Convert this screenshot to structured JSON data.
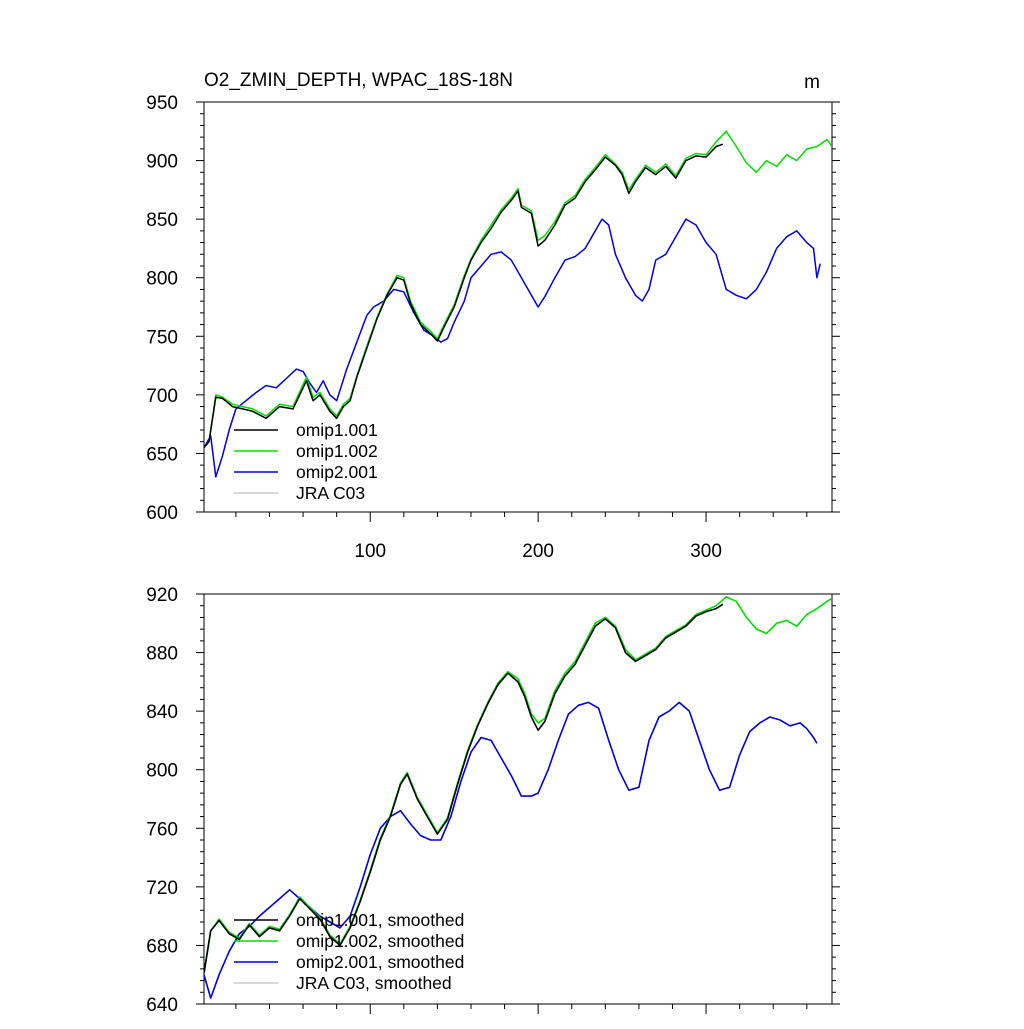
{
  "chart_data": [
    {
      "type": "line",
      "title": "O2_ZMIN_DEPTH, WPAC_18S-18N",
      "units": "m",
      "xlabel": "",
      "ylabel": "",
      "xlim": [
        1,
        375
      ],
      "ylim": [
        600,
        950
      ],
      "yticks": [
        600,
        650,
        700,
        750,
        800,
        850,
        900,
        950
      ],
      "xticks": [
        100,
        200,
        300
      ],
      "xtick_labels": [
        "100",
        "200",
        "300"
      ],
      "legend_location": "bottom-left",
      "series": [
        {
          "name": "omip1.001",
          "color": "#000000",
          "x": [
            1,
            4,
            8,
            12,
            18,
            24,
            30,
            38,
            46,
            54,
            62,
            66,
            70,
            76,
            80,
            84,
            88,
            92,
            98,
            104,
            110,
            116,
            120,
            124,
            130,
            136,
            140,
            144,
            150,
            156,
            160,
            166,
            172,
            178,
            184,
            188,
            190,
            196,
            200,
            204,
            210,
            216,
            222,
            228,
            234,
            240,
            246,
            250,
            254,
            258,
            264,
            270,
            276,
            282,
            288,
            294,
            300,
            306,
            310
          ],
          "y": [
            655,
            660,
            698,
            697,
            690,
            688,
            686,
            680,
            690,
            688,
            712,
            695,
            700,
            686,
            680,
            690,
            695,
            715,
            740,
            765,
            785,
            800,
            798,
            778,
            760,
            752,
            746,
            758,
            775,
            800,
            815,
            830,
            842,
            856,
            866,
            874,
            860,
            855,
            827,
            832,
            845,
            862,
            868,
            882,
            892,
            903,
            896,
            888,
            872,
            882,
            894,
            888,
            895,
            885,
            900,
            904,
            903,
            912,
            914
          ]
        },
        {
          "name": "omip1.002",
          "color": "#00e000",
          "x": [
            1,
            4,
            8,
            12,
            18,
            24,
            30,
            38,
            46,
            54,
            62,
            66,
            70,
            76,
            80,
            84,
            88,
            92,
            98,
            104,
            110,
            116,
            120,
            124,
            130,
            136,
            140,
            144,
            150,
            156,
            160,
            166,
            172,
            178,
            184,
            188,
            190,
            196,
            200,
            204,
            210,
            216,
            222,
            228,
            234,
            240,
            246,
            250,
            254,
            258,
            264,
            270,
            276,
            282,
            288,
            294,
            300,
            306,
            312,
            318,
            324,
            330,
            336,
            342,
            348,
            354,
            360,
            366,
            372,
            375
          ],
          "y": [
            655,
            660,
            700,
            698,
            692,
            690,
            688,
            682,
            692,
            690,
            715,
            698,
            702,
            688,
            682,
            692,
            697,
            716,
            742,
            766,
            786,
            802,
            800,
            780,
            762,
            754,
            748,
            760,
            777,
            802,
            816,
            832,
            845,
            858,
            868,
            876,
            862,
            857,
            832,
            836,
            848,
            864,
            870,
            884,
            894,
            905,
            897,
            890,
            875,
            884,
            896,
            890,
            897,
            887,
            902,
            906,
            905,
            916,
            925,
            912,
            898,
            890,
            900,
            895,
            905,
            900,
            910,
            912,
            918,
            912
          ]
        },
        {
          "name": "omip2.001",
          "color": "#0000e0",
          "x": [
            1,
            5,
            8,
            12,
            16,
            20,
            26,
            32,
            38,
            44,
            50,
            56,
            60,
            64,
            68,
            72,
            76,
            80,
            86,
            92,
            98,
            102,
            108,
            114,
            120,
            126,
            132,
            138,
            142,
            146,
            150,
            156,
            160,
            166,
            172,
            178,
            184,
            190,
            196,
            200,
            204,
            210,
            216,
            222,
            228,
            234,
            238,
            242,
            246,
            252,
            258,
            262,
            266,
            270,
            276,
            282,
            288,
            294,
            300,
            306,
            312,
            318,
            324,
            330,
            336,
            342,
            348,
            354,
            360,
            364,
            366,
            368
          ],
          "y": [
            655,
            665,
            630,
            648,
            670,
            688,
            695,
            702,
            708,
            706,
            714,
            722,
            720,
            710,
            702,
            712,
            700,
            695,
            722,
            745,
            768,
            775,
            780,
            790,
            788,
            770,
            755,
            750,
            745,
            748,
            762,
            780,
            800,
            810,
            820,
            822,
            815,
            800,
            785,
            775,
            784,
            800,
            815,
            818,
            825,
            840,
            850,
            845,
            820,
            800,
            785,
            780,
            790,
            815,
            820,
            835,
            850,
            845,
            830,
            820,
            790,
            785,
            782,
            790,
            805,
            825,
            835,
            840,
            830,
            825,
            800,
            812
          ]
        },
        {
          "name": "JRA C03",
          "color": "#c8c8c8",
          "x": [],
          "y": []
        }
      ]
    },
    {
      "type": "line",
      "title": "",
      "units": "",
      "xlabel": "",
      "ylabel": "",
      "xlim": [
        1,
        375
      ],
      "ylim": [
        640,
        920
      ],
      "yticks": [
        640,
        680,
        720,
        760,
        800,
        840,
        880,
        920
      ],
      "xticks": [
        100,
        200,
        300
      ],
      "xtick_labels": [
        "",
        "",
        ""
      ],
      "legend_location": "bottom-left",
      "series": [
        {
          "name": "omip1.001, smoothed",
          "color": "#000000",
          "x": [
            1,
            5,
            10,
            16,
            22,
            28,
            34,
            40,
            46,
            52,
            58,
            64,
            70,
            76,
            82,
            88,
            94,
            100,
            106,
            112,
            118,
            122,
            128,
            134,
            140,
            146,
            152,
            158,
            164,
            170,
            176,
            182,
            188,
            192,
            196,
            200,
            204,
            210,
            216,
            222,
            228,
            234,
            240,
            246,
            252,
            258,
            264,
            270,
            276,
            282,
            288,
            294,
            300,
            306,
            310
          ],
          "y": [
            661,
            690,
            697,
            688,
            684,
            694,
            686,
            692,
            690,
            700,
            712,
            705,
            698,
            686,
            680,
            692,
            710,
            730,
            752,
            768,
            790,
            797,
            780,
            768,
            756,
            766,
            790,
            812,
            830,
            845,
            858,
            866,
            860,
            850,
            836,
            827,
            833,
            852,
            864,
            872,
            885,
            898,
            903,
            897,
            880,
            874,
            878,
            882,
            890,
            894,
            898,
            905,
            908,
            910,
            913
          ]
        },
        {
          "name": "omip1.002, smoothed",
          "color": "#00e000",
          "x": [
            1,
            5,
            10,
            16,
            22,
            28,
            34,
            40,
            46,
            52,
            58,
            64,
            70,
            76,
            82,
            88,
            94,
            100,
            106,
            112,
            118,
            122,
            128,
            134,
            140,
            146,
            152,
            158,
            164,
            170,
            176,
            182,
            188,
            192,
            196,
            200,
            204,
            210,
            216,
            222,
            228,
            234,
            240,
            246,
            252,
            258,
            264,
            270,
            276,
            282,
            288,
            294,
            300,
            306,
            312,
            318,
            324,
            330,
            336,
            342,
            348,
            354,
            360,
            366,
            372,
            375
          ],
          "y": [
            661,
            690,
            698,
            689,
            685,
            695,
            687,
            693,
            691,
            701,
            713,
            706,
            699,
            687,
            681,
            693,
            711,
            731,
            753,
            769,
            791,
            798,
            781,
            769,
            757,
            767,
            791,
            813,
            831,
            846,
            859,
            867,
            862,
            852,
            838,
            832,
            835,
            854,
            866,
            874,
            887,
            900,
            904,
            898,
            882,
            875,
            879,
            883,
            891,
            895,
            899,
            906,
            909,
            912,
            918,
            915,
            904,
            896,
            893,
            900,
            902,
            898,
            906,
            910,
            915,
            917
          ]
        },
        {
          "name": "omip2.001, smoothed",
          "color": "#0000e0",
          "x": [
            1,
            5,
            10,
            16,
            22,
            28,
            34,
            40,
            46,
            52,
            58,
            64,
            70,
            76,
            82,
            88,
            94,
            100,
            106,
            112,
            118,
            124,
            130,
            136,
            142,
            148,
            154,
            160,
            166,
            172,
            178,
            184,
            190,
            196,
            200,
            206,
            212,
            218,
            224,
            230,
            236,
            242,
            248,
            254,
            260,
            266,
            272,
            278,
            284,
            290,
            296,
            302,
            308,
            314,
            320,
            326,
            332,
            338,
            344,
            350,
            356,
            360,
            364,
            366
          ],
          "y": [
            660,
            644,
            660,
            676,
            688,
            693,
            700,
            706,
            712,
            718,
            712,
            706,
            700,
            696,
            692,
            700,
            720,
            742,
            760,
            768,
            772,
            763,
            755,
            752,
            752,
            768,
            792,
            812,
            822,
            820,
            808,
            796,
            782,
            782,
            784,
            800,
            820,
            838,
            844,
            846,
            842,
            820,
            800,
            786,
            788,
            820,
            836,
            840,
            846,
            840,
            820,
            800,
            786,
            788,
            810,
            826,
            832,
            836,
            834,
            830,
            832,
            828,
            822,
            818
          ]
        },
        {
          "name": "JRA C03, smoothed",
          "color": "#c8c8c8",
          "x": [],
          "y": []
        }
      ]
    }
  ]
}
